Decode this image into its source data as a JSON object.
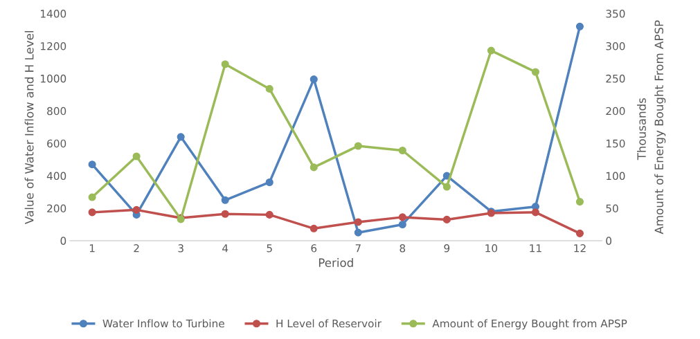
{
  "chart_data": {
    "type": "line",
    "xlabel": "Period",
    "ylabel": "Value of Water Inflow and H Level",
    "y2label": "Amount of Energy Bought From APSP",
    "annotations": [
      "Thousands"
    ],
    "categories": [
      "1",
      "2",
      "3",
      "4",
      "5",
      "6",
      "7",
      "8",
      "9",
      "10",
      "11",
      "12"
    ],
    "series": [
      {
        "name": "Water Inflow to Turbine",
        "color": "#4f81bd",
        "values": [
          470,
          160,
          640,
          250,
          360,
          995,
          50,
          100,
          400,
          180,
          210,
          1320
        ]
      },
      {
        "name": "H Level of Reservoir",
        "color": "#c0504d",
        "values": [
          175,
          190,
          140,
          165,
          160,
          75,
          115,
          145,
          130,
          170,
          175,
          45
        ]
      },
      {
        "name": "Amount of Energy Bought from APSP",
        "color": "#9bbb59",
        "axis": "y2",
        "values": [
          67,
          130,
          33,
          272,
          234,
          113,
          146,
          139,
          83,
          293,
          260,
          60
        ]
      }
    ],
    "ylim": [
      0,
      1400
    ],
    "yticks": [
      0,
      200,
      400,
      600,
      800,
      1000,
      1200,
      1400
    ],
    "y2lim": [
      0,
      350
    ],
    "y2ticks": [
      0,
      50,
      100,
      150,
      200,
      250,
      300,
      350
    ],
    "grid": false,
    "legend": "bottom",
    "marker": "circle",
    "line_style": "solid"
  }
}
